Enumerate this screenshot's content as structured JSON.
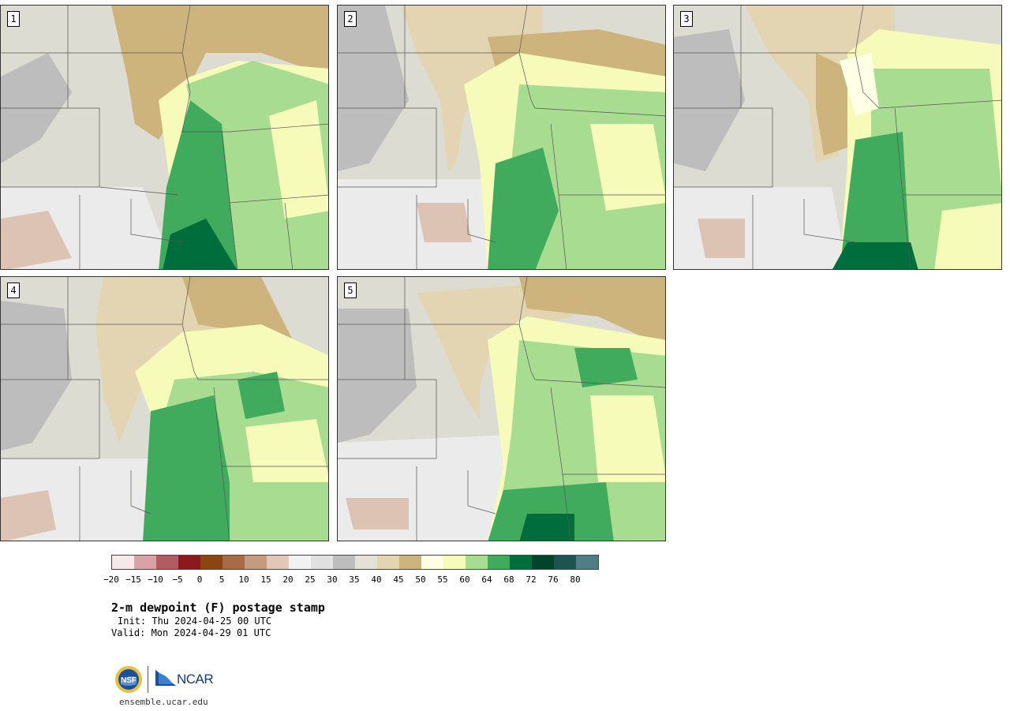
{
  "panels": [
    {
      "label": "1"
    },
    {
      "label": "2"
    },
    {
      "label": "3"
    },
    {
      "label": "4"
    },
    {
      "label": "5"
    }
  ],
  "colorbar": {
    "colors": [
      "#f5e9ea",
      "#d8a3a7",
      "#b05c61",
      "#8b1a1f",
      "#8b4513",
      "#a86b48",
      "#c49a80",
      "#e2c7b6",
      "#f2f2f2",
      "#e0e0e0",
      "#bdbdbd",
      "#e4e2d6",
      "#e3d5b1",
      "#cdb47c",
      "#ffffe6",
      "#f7fbb9",
      "#a8dc90",
      "#41ab5d",
      "#006d3c",
      "#00442b",
      "#1d5452",
      "#517e86"
    ],
    "tick_labels": [
      "−20",
      "−15",
      "−10",
      "−5",
      "0",
      "5",
      "10",
      "15",
      "20",
      "25",
      "30",
      "35",
      "40",
      "45",
      "50",
      "55",
      "60",
      "64",
      "68",
      "72",
      "76",
      "80"
    ]
  },
  "title": "2-m dewpoint (F) postage stamp",
  "init": "Init: Thu 2024-04-25 00 UTC",
  "valid": "Valid: Mon 2024-04-29 01 UTC",
  "logos": {
    "nsf": "NSF",
    "ncar": "NCAR"
  },
  "url": "ensemble.ucar.edu"
}
